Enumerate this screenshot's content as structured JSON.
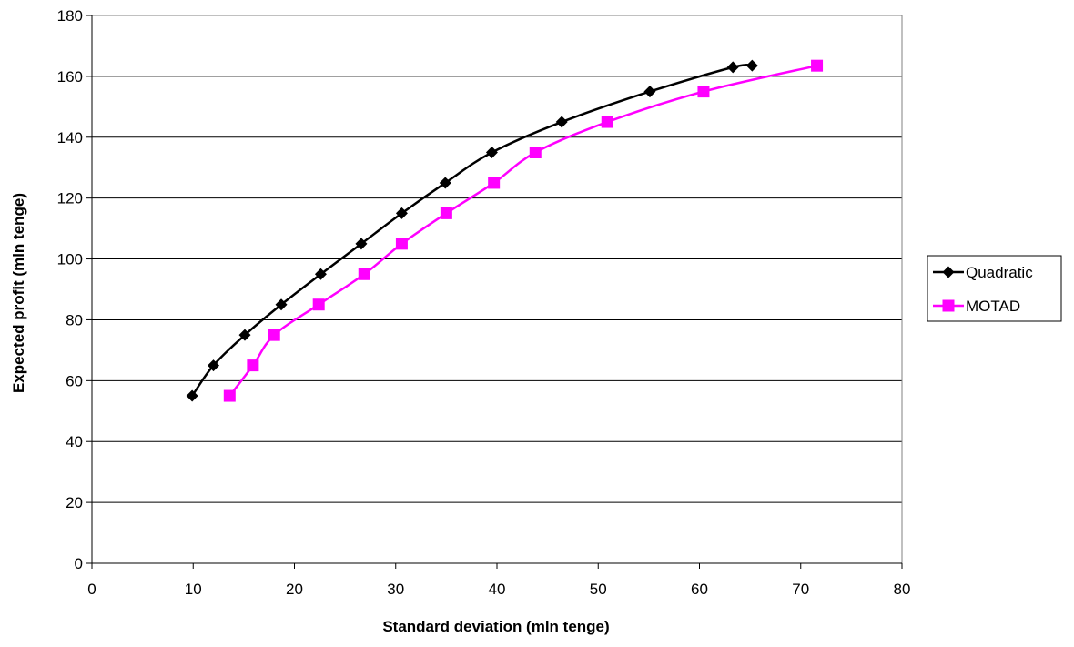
{
  "chart_data": {
    "type": "line",
    "title": "",
    "xlabel": "Standard deviation (mln tenge)",
    "ylabel": "Expected profit (mln tenge)",
    "xlim": [
      0,
      80
    ],
    "ylim": [
      0,
      180
    ],
    "x_ticks": [
      0,
      10,
      20,
      30,
      40,
      50,
      60,
      70,
      80
    ],
    "y_ticks": [
      0,
      20,
      40,
      60,
      80,
      100,
      120,
      140,
      160,
      180
    ],
    "grid": "horizontal",
    "legend_position": "right",
    "series": [
      {
        "name": "Quadratic",
        "color": "#000000",
        "marker": "diamond",
        "points": [
          [
            9.9,
            55
          ],
          [
            12.0,
            65
          ],
          [
            15.1,
            75
          ],
          [
            18.7,
            85
          ],
          [
            22.6,
            95
          ],
          [
            26.6,
            105
          ],
          [
            30.6,
            115
          ],
          [
            34.9,
            125
          ],
          [
            39.5,
            135
          ],
          [
            46.4,
            145
          ],
          [
            55.1,
            155
          ],
          [
            63.3,
            163
          ],
          [
            65.2,
            163.5
          ]
        ]
      },
      {
        "name": "MOTAD",
        "color": "#ff00ff",
        "marker": "square",
        "points": [
          [
            13.6,
            55
          ],
          [
            15.9,
            65
          ],
          [
            18.0,
            75
          ],
          [
            22.4,
            85
          ],
          [
            26.9,
            95
          ],
          [
            30.6,
            105
          ],
          [
            35.0,
            115
          ],
          [
            39.7,
            125
          ],
          [
            43.8,
            135
          ],
          [
            50.9,
            145
          ],
          [
            60.4,
            155
          ],
          [
            71.6,
            163.5
          ]
        ]
      }
    ]
  }
}
